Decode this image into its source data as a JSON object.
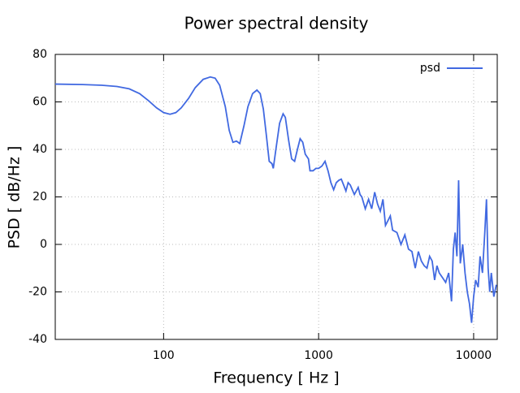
{
  "chart_data": {
    "type": "line",
    "title": "Power spectral density",
    "x_label": "Frequency [ Hz ]",
    "y_label": "PSD [ dB/Hz ]",
    "x_scale": "log",
    "grid": true,
    "legend_position": "top-right",
    "xlim": [
      20,
      14200
    ],
    "ylim": [
      -40,
      80
    ],
    "xticks": [
      100,
      1000,
      10000
    ],
    "yticks": [
      -40,
      -20,
      0,
      20,
      40,
      60,
      80
    ],
    "x": [
      20,
      30,
      40,
      50,
      60,
      70,
      80,
      90,
      100,
      110,
      120,
      130,
      145,
      160,
      180,
      200,
      215,
      230,
      250,
      265,
      280,
      295,
      310,
      330,
      350,
      375,
      400,
      420,
      440,
      460,
      480,
      500,
      510,
      530,
      560,
      590,
      610,
      640,
      670,
      700,
      730,
      760,
      790,
      820,
      860,
      880,
      920,
      960,
      1000,
      1050,
      1100,
      1150,
      1200,
      1250,
      1300,
      1350,
      1400,
      1450,
      1500,
      1550,
      1600,
      1700,
      1800,
      1850,
      1900,
      2000,
      2100,
      2200,
      2300,
      2400,
      2500,
      2600,
      2700,
      2800,
      2900,
      3000,
      3200,
      3400,
      3600,
      3800,
      4000,
      4200,
      4400,
      4600,
      4800,
      5000,
      5200,
      5400,
      5600,
      5800,
      6000,
      6300,
      6600,
      6900,
      7200,
      7400,
      7600,
      7800,
      8000,
      8200,
      8500,
      8800,
      9100,
      9400,
      9700,
      10000,
      10300,
      10700,
      11000,
      11400,
      11800,
      12100,
      12400,
      12700,
      13000,
      13500,
      14000
    ],
    "series": [
      {
        "name": "psd",
        "color": "#4169e1",
        "values": [
          67.5,
          67.3,
          67,
          66.5,
          65.5,
          63.5,
          60.5,
          57.5,
          55.5,
          54.8,
          55.5,
          57.5,
          61.5,
          66,
          69.5,
          70.5,
          70,
          67,
          58,
          48,
          43,
          43.5,
          42.5,
          50,
          58,
          63.5,
          65,
          63.5,
          57,
          46,
          35,
          34,
          32,
          40,
          51,
          55,
          53.5,
          44,
          36,
          35,
          40,
          44.5,
          43,
          38,
          36,
          31,
          31,
          32,
          32,
          33,
          35,
          31,
          26,
          23,
          26,
          27,
          27.5,
          25,
          22.5,
          26,
          25,
          21,
          24,
          21,
          20,
          15,
          19,
          15,
          22,
          17,
          14,
          19,
          8,
          10,
          12,
          6,
          5,
          0,
          4,
          -2,
          -3,
          -10,
          -3,
          -7,
          -9,
          -10,
          -5,
          -7,
          -15,
          -9,
          -12,
          -14,
          -16,
          -12,
          -24,
          -2,
          5,
          -5,
          27,
          -8,
          0,
          -12,
          -20,
          -25,
          -33,
          -22,
          -15,
          -18,
          -5,
          -12,
          5,
          19,
          -10,
          -20,
          -12,
          -22,
          -17
        ]
      }
    ]
  }
}
